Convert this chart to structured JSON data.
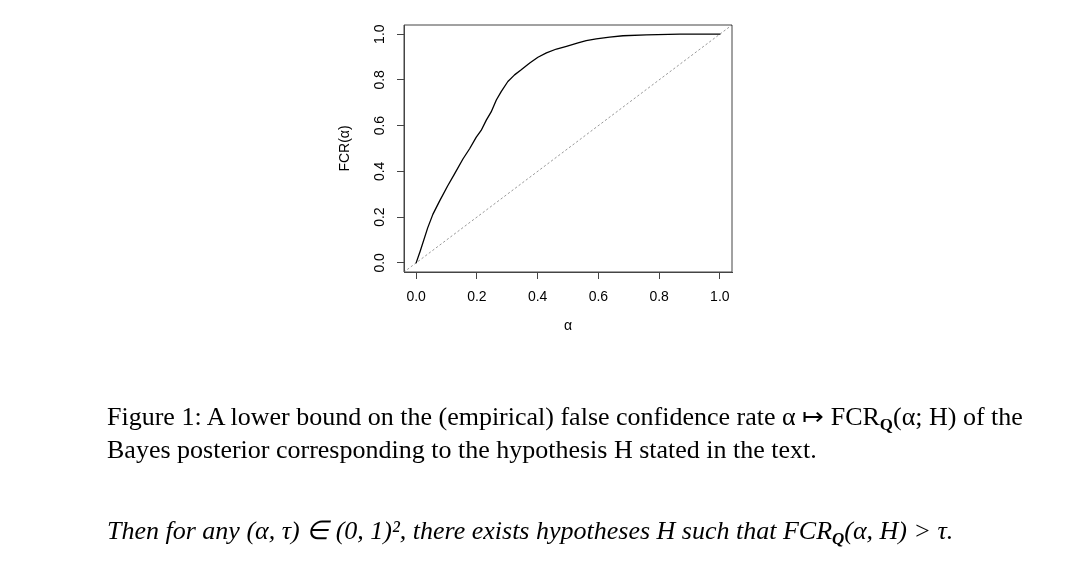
{
  "chart_data": {
    "type": "line",
    "xlabel": "α",
    "ylabel": "FCR(α)",
    "xlim": [
      -0.04,
      1.04
    ],
    "ylim": [
      -0.04,
      1.04
    ],
    "xticks": [
      {
        "value": 0,
        "label": "0.0"
      },
      {
        "value": 0.2,
        "label": "0.2"
      },
      {
        "value": 0.4,
        "label": "0.4"
      },
      {
        "value": 0.6,
        "label": "0.6"
      },
      {
        "value": 0.8,
        "label": "0.8"
      },
      {
        "value": 1,
        "label": "1.0"
      }
    ],
    "yticks": [
      {
        "value": 0,
        "label": "0.0"
      },
      {
        "value": 0.2,
        "label": "0.2"
      },
      {
        "value": 0.4,
        "label": "0.4"
      },
      {
        "value": 0.6,
        "label": "0.6"
      },
      {
        "value": 0.8,
        "label": "0.8"
      },
      {
        "value": 1,
        "label": "1.0"
      }
    ],
    "grid": false,
    "legend": false,
    "marker": "none",
    "series": [
      {
        "color": "#000000",
        "line_style": "solid",
        "x": [
          0,
          0.013,
          0.038,
          0.055,
          0.077,
          0.104,
          0.126,
          0.154,
          0.176,
          0.198,
          0.214,
          0.231,
          0.247,
          0.264,
          0.28,
          0.302,
          0.324,
          0.346,
          0.374,
          0.401,
          0.429,
          0.462,
          0.495,
          0.533,
          0.56,
          0.593,
          0.637,
          0.681,
          0.758,
          0.868,
          1
        ],
        "values": [
          0,
          0.05,
          0.153,
          0.212,
          0.27,
          0.337,
          0.388,
          0.454,
          0.499,
          0.55,
          0.579,
          0.624,
          0.66,
          0.712,
          0.749,
          0.793,
          0.822,
          0.844,
          0.874,
          0.899,
          0.918,
          0.935,
          0.947,
          0.962,
          0.972,
          0.979,
          0.987,
          0.993,
          0.997,
          1,
          1
        ]
      },
      {
        "color": "#999999",
        "line_style": "dotted",
        "x": [
          -0.04,
          1.04
        ],
        "values": [
          -0.04,
          1.04
        ]
      }
    ],
    "annotations": [
      "Figure 1: A lower bound on the (empirical) false confidence rate α ↦ FCR$_{Q}$(α; H) of the Bayes posterior corresponding to the hypothesis H stated in the text.",
      "Then for any (α, τ) ∈ (0, 1)², there exists hypotheses H such that FCR$_{Q}$(α, H) > τ."
    ]
  }
}
